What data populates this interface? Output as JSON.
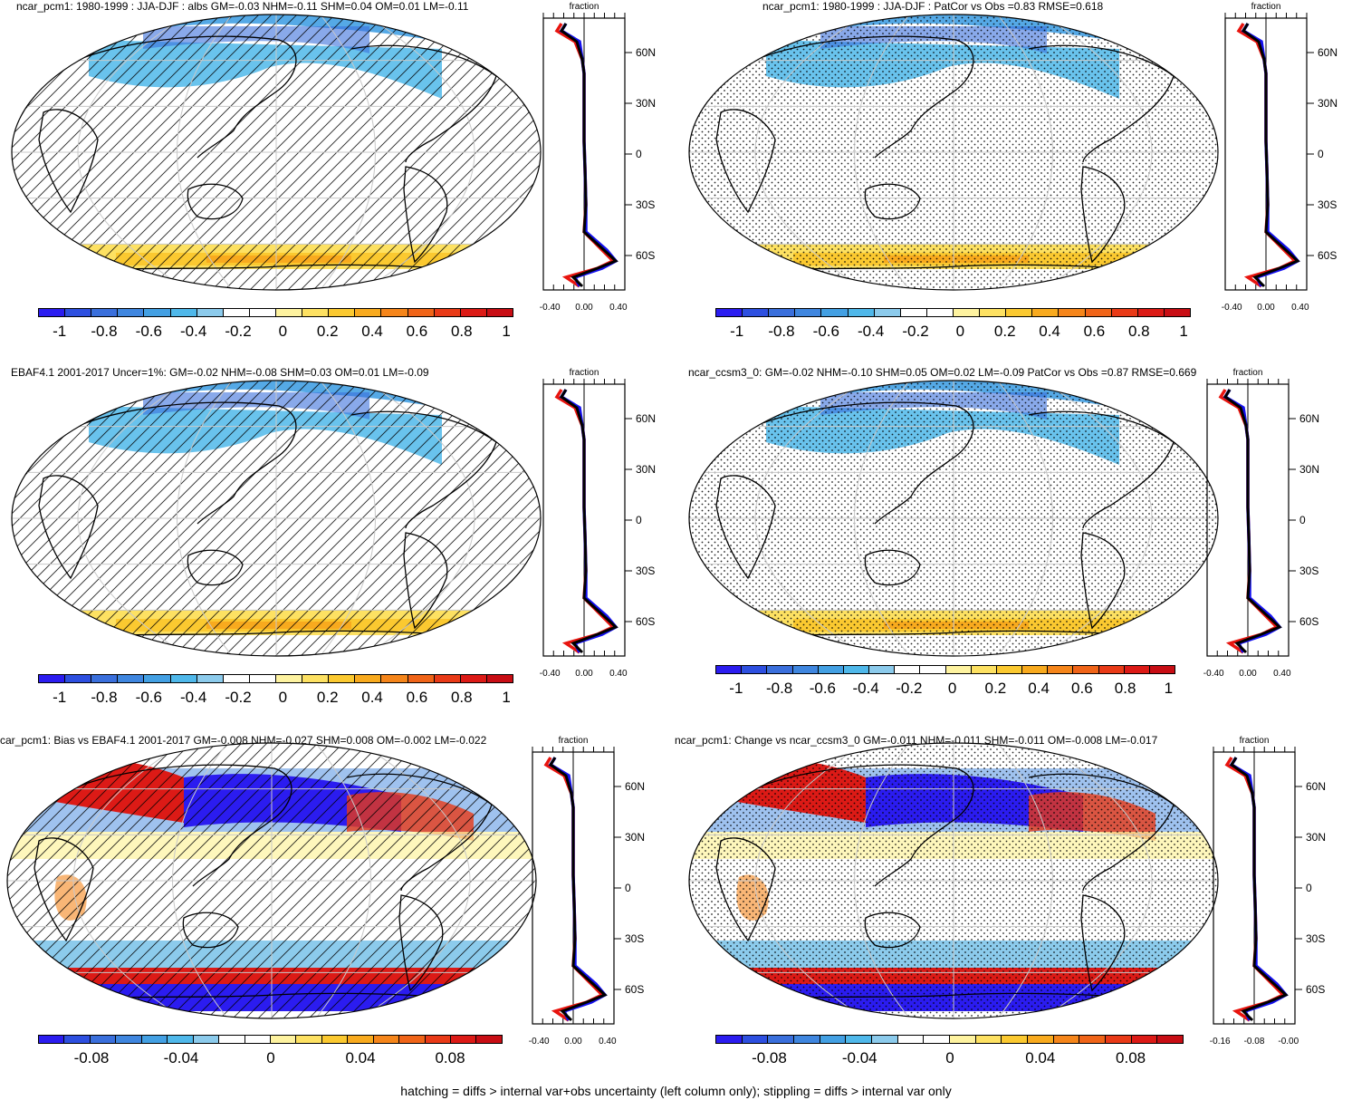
{
  "panels": [
    {
      "id": "p1",
      "title": "ncar_pcm1: 1980-1999 : JJA-DJF : albs GM=-0.03 NHM=-0.11 SHM=0.04 OM=0.01 LM=-0.11",
      "pattern": "hatch",
      "colorbar_labels": [
        "-1",
        "-0.8",
        "-0.6",
        "-0.4",
        "-0.2",
        "0",
        "0.2",
        "0.4",
        "0.6",
        "0.8",
        "1"
      ],
      "profile_xlabels": [
        "-0.40",
        "0.00",
        "0.40"
      ],
      "profile_header": "fraction",
      "lat_labels": [
        "60N",
        "30N",
        "0",
        "30S",
        "60S"
      ]
    },
    {
      "id": "p2",
      "title": "ncar_pcm1: 1980-1999 : JJA-DJF : PatCor vs Obs =0.83 RMSE=0.618",
      "pattern": "stipple",
      "colorbar_labels": [
        "-1",
        "-0.8",
        "-0.6",
        "-0.4",
        "-0.2",
        "0",
        "0.2",
        "0.4",
        "0.6",
        "0.8",
        "1"
      ],
      "profile_xlabels": [
        "-0.40",
        "0.00",
        "0.40"
      ],
      "profile_header": "fraction",
      "lat_labels": [
        "60N",
        "30N",
        "0",
        "30S",
        "60S"
      ]
    },
    {
      "id": "p3",
      "title": "EBAF4.1 2001-2017 Uncer=1%: GM=-0.02 NHM=-0.08 SHM=0.03 OM=0.01 LM=-0.09",
      "pattern": "hatch",
      "colorbar_labels": [
        "-1",
        "-0.8",
        "-0.6",
        "-0.4",
        "-0.2",
        "0",
        "0.2",
        "0.4",
        "0.6",
        "0.8",
        "1"
      ],
      "profile_xlabels": [
        "-0.40",
        "0.00",
        "0.40"
      ],
      "profile_header": "fraction",
      "lat_labels": [
        "60N",
        "30N",
        "0",
        "30S",
        "60S"
      ]
    },
    {
      "id": "p4",
      "title": "ncar_ccsm3_0: GM=-0.02 NHM=-0.10 SHM=0.05 OM=0.02 LM=-0.09 PatCor vs Obs =0.87 RMSE=0.669",
      "pattern": "stipple",
      "colorbar_labels": [
        "-1",
        "-0.8",
        "-0.6",
        "-0.4",
        "-0.2",
        "0",
        "0.2",
        "0.4",
        "0.6",
        "0.8",
        "1"
      ],
      "profile_xlabels": [
        "-0.40",
        "0.00",
        "0.40"
      ],
      "profile_header": "fraction",
      "lat_labels": [
        "60N",
        "30N",
        "0",
        "30S",
        "60S"
      ]
    },
    {
      "id": "p5",
      "title": "car_pcm1: Bias vs EBAF4.1 2001-2017 GM=-0.008 NHM=-0.027 SHM=0.008 OM=-0.002 LM=-0.022",
      "pattern": "hatch",
      "colorbar_labels": [
        "-0.08",
        "-0.04",
        "0",
        "0.04",
        "0.08"
      ],
      "profile_xlabels": [
        "-0.40",
        "0.00",
        "0.40"
      ],
      "profile_header": "fraction",
      "lat_labels": [
        "60N",
        "30N",
        "0",
        "30S",
        "60S"
      ]
    },
    {
      "id": "p6",
      "title": "ncar_pcm1: Change vs ncar_ccsm3_0 GM=-0.011 NHM=-0.011 SHM=-0.011 OM=-0.008 LM=-0.017",
      "pattern": "stipple",
      "colorbar_labels": [
        "-0.08",
        "-0.04",
        "0",
        "0.04",
        "0.08"
      ],
      "profile_xlabels": [
        "-0.16",
        "-0.08",
        "-0.00"
      ],
      "profile_header": "fraction",
      "lat_labels": [
        "60N",
        "30N",
        "0",
        "30S",
        "60S"
      ]
    }
  ],
  "colorbar_colors": [
    "#2b1cf0",
    "#2d4fe0",
    "#3a6fdc",
    "#3f86df",
    "#43a0e3",
    "#4fb8ea",
    "#8ccbec",
    "#ffffff",
    "#ffffff",
    "#fef3a0",
    "#fde162",
    "#fbc930",
    "#f8aa1e",
    "#f5851a",
    "#f06418",
    "#e93a17",
    "#dc1a16",
    "#c80d14"
  ],
  "line_colors": {
    "model": "#e8140e",
    "obs": "#1410f0",
    "ref": "#000000"
  },
  "caption": "hatching = diffs > internal var+obs uncertainty (left column only); stippling = diffs > internal var only"
}
